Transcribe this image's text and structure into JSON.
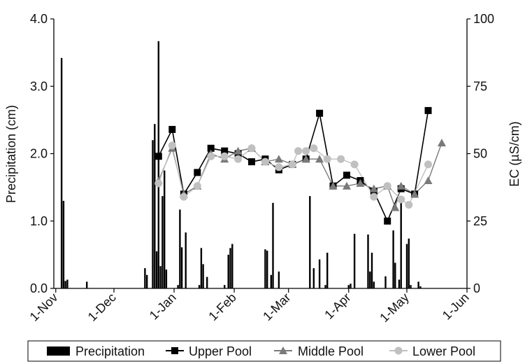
{
  "chart_data": {
    "type": "bar+line",
    "xlabel": "",
    "x_ticks": [
      "1-Nov",
      "1-Dec",
      "1-Jan",
      "1-Feb",
      "1-Mar",
      "1-Apr",
      "1-May",
      "1-Jun"
    ],
    "ylabel_left": "Precipitation (cm)",
    "ylabel_right": "EC (µS/cm)",
    "y_left_ticks": [
      "0.0",
      "1.0",
      "2.0",
      "3.0",
      "4.0"
    ],
    "y_right_ticks": [
      "0",
      "25",
      "50",
      "75",
      "100"
    ],
    "ylim_left": [
      0,
      4
    ],
    "ylim_right": [
      0,
      100
    ],
    "xlim": [
      "2009-10-31",
      "2010-06-01"
    ],
    "grid": false,
    "legend_position": "bottom",
    "legend": [
      "Precipitation",
      "Upper Pool",
      "Middle Pool",
      "Lower Pool"
    ],
    "precipitation": {
      "name": "Precipitation",
      "color": "#000000",
      "axis": "left",
      "points": [
        [
          "2009-11-04",
          3.42
        ],
        [
          "2009-11-05",
          1.3
        ],
        [
          "2009-11-06",
          0.11
        ],
        [
          "2009-11-07",
          0.13
        ],
        [
          "2009-11-17",
          0.1
        ],
        [
          "2009-12-17",
          0.3
        ],
        [
          "2009-12-18",
          0.2
        ],
        [
          "2009-12-21",
          2.2
        ],
        [
          "2009-12-22",
          2.44
        ],
        [
          "2009-12-23",
          0.55
        ],
        [
          "2009-12-24",
          3.67
        ],
        [
          "2009-12-25",
          0.33
        ],
        [
          "2009-12-26",
          1.37
        ],
        [
          "2009-12-27",
          1.75
        ],
        [
          "2009-12-28",
          0.28
        ],
        [
          "2010-01-03",
          0.05
        ],
        [
          "2010-01-04",
          1.17
        ],
        [
          "2010-01-05",
          0.61
        ],
        [
          "2010-01-07",
          0.83
        ],
        [
          "2010-01-14",
          0.05
        ],
        [
          "2010-01-15",
          0.6
        ],
        [
          "2010-01-16",
          0.36
        ],
        [
          "2010-01-18",
          0.17
        ],
        [
          "2010-01-27",
          0.05
        ],
        [
          "2010-01-29",
          0.5
        ],
        [
          "2010-01-30",
          0.6
        ],
        [
          "2010-01-31",
          0.66
        ],
        [
          "2010-02-17",
          0.58
        ],
        [
          "2010-02-18",
          0.56
        ],
        [
          "2010-02-20",
          0.2
        ],
        [
          "2010-02-21",
          1.27
        ],
        [
          "2010-02-24",
          0.25
        ],
        [
          "2010-03-12",
          1.37
        ],
        [
          "2010-03-14",
          0.3
        ],
        [
          "2010-03-17",
          0.43
        ],
        [
          "2010-03-20",
          0.05
        ],
        [
          "2010-03-21",
          0.53
        ],
        [
          "2010-04-01",
          0.05
        ],
        [
          "2010-04-02",
          0.07
        ],
        [
          "2010-04-04",
          0.81
        ],
        [
          "2010-04-11",
          0.8
        ],
        [
          "2010-04-12",
          0.25
        ],
        [
          "2010-04-13",
          0.53
        ],
        [
          "2010-04-14",
          0.1
        ],
        [
          "2010-04-20",
          0.18
        ],
        [
          "2010-04-24",
          0.86
        ],
        [
          "2010-04-25",
          0.38
        ],
        [
          "2010-04-27",
          0.13
        ],
        [
          "2010-04-28",
          1.37
        ],
        [
          "2010-05-01",
          0.66
        ],
        [
          "2010-05-02",
          0.74
        ],
        [
          "2010-05-03",
          0.05
        ],
        [
          "2010-05-07",
          0.1
        ],
        [
          "2010-05-08",
          0.03
        ]
      ]
    },
    "series": [
      {
        "name": "Upper Pool",
        "color": "#000000",
        "marker": "square",
        "axis": "right",
        "points": [
          [
            "2009-12-24",
            49
          ],
          [
            "2009-12-31",
            59
          ],
          [
            "2010-01-06",
            35
          ],
          [
            "2010-01-13",
            43
          ],
          [
            "2010-01-20",
            52
          ],
          [
            "2010-01-27",
            51
          ],
          [
            "2010-02-03",
            50
          ],
          [
            "2010-02-10",
            47
          ],
          [
            "2010-02-17",
            48
          ],
          [
            "2010-02-24",
            44
          ],
          [
            "2010-03-03",
            46
          ],
          [
            "2010-03-10",
            48
          ],
          [
            "2010-03-17",
            65
          ],
          [
            "2010-03-24",
            38
          ],
          [
            "2010-03-31",
            42
          ],
          [
            "2010-04-07",
            40
          ],
          [
            "2010-04-14",
            36
          ],
          [
            "2010-04-21",
            25
          ],
          [
            "2010-04-28",
            37
          ],
          [
            "2010-05-05",
            35
          ],
          [
            "2010-05-12",
            66
          ]
        ]
      },
      {
        "name": "Middle Pool",
        "color": "#7a7a7a",
        "marker": "triangle",
        "axis": "right",
        "points": [
          [
            "2009-12-24",
            40
          ],
          [
            "2009-12-31",
            52
          ],
          [
            "2010-01-06",
            35
          ],
          [
            "2010-01-13",
            38
          ],
          [
            "2010-01-20",
            50
          ],
          [
            "2010-01-27",
            48
          ],
          [
            "2010-02-03",
            51
          ],
          [
            "2010-02-10",
            52
          ],
          [
            "2010-02-17",
            47
          ],
          [
            "2010-02-24",
            48
          ],
          [
            "2010-03-03",
            46
          ],
          [
            "2010-03-10",
            48
          ],
          [
            "2010-03-17",
            48
          ],
          [
            "2010-03-24",
            38
          ],
          [
            "2010-03-31",
            38
          ],
          [
            "2010-04-07",
            39
          ],
          [
            "2010-04-14",
            37
          ],
          [
            "2010-04-21",
            38
          ],
          [
            "2010-04-25",
            30
          ],
          [
            "2010-04-28",
            38
          ],
          [
            "2010-05-05",
            35
          ],
          [
            "2010-05-12",
            40
          ],
          [
            "2010-05-19",
            54
          ]
        ]
      },
      {
        "name": "Lower Pool",
        "color": "#c0c0c0",
        "marker": "circle",
        "axis": "right",
        "points": [
          [
            "2009-12-24",
            39
          ],
          [
            "2009-12-31",
            53
          ],
          [
            "2010-01-06",
            34
          ],
          [
            "2010-01-13",
            38
          ],
          [
            "2010-01-20",
            49
          ],
          [
            "2010-01-27",
            49
          ],
          [
            "2010-02-03",
            48
          ],
          [
            "2010-02-10",
            52
          ],
          [
            "2010-02-17",
            47
          ],
          [
            "2010-02-24",
            45
          ],
          [
            "2010-03-03",
            46
          ],
          [
            "2010-03-06",
            51
          ],
          [
            "2010-03-10",
            51
          ],
          [
            "2010-03-14",
            52
          ],
          [
            "2010-03-21",
            48
          ],
          [
            "2010-03-28",
            48
          ],
          [
            "2010-04-04",
            46
          ],
          [
            "2010-04-14",
            34
          ],
          [
            "2010-04-21",
            38
          ],
          [
            "2010-04-28",
            33
          ],
          [
            "2010-05-02",
            31
          ],
          [
            "2010-05-12",
            46
          ]
        ]
      }
    ]
  }
}
